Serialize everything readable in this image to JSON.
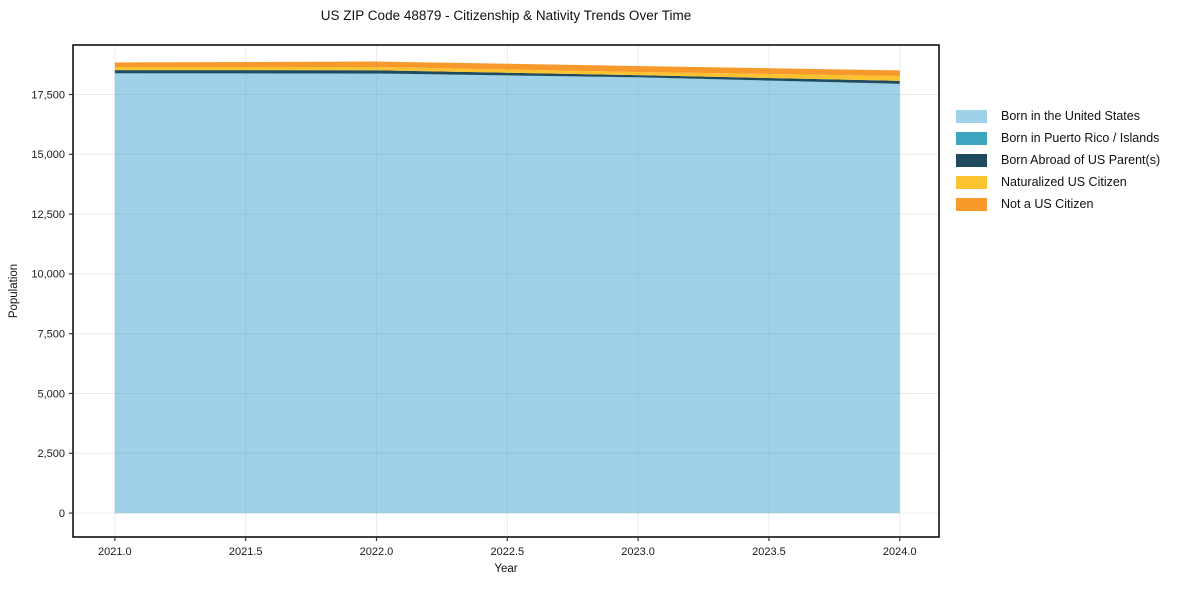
{
  "chart_data": {
    "type": "area",
    "stacked": true,
    "title": "US ZIP Code 48879 - Citizenship & Nativity Trends Over Time",
    "xlabel": "Year",
    "ylabel": "Population",
    "x": [
      2021,
      2022,
      2023,
      2024
    ],
    "series": [
      {
        "name": "Born in the United States",
        "color": "#9fd2e8",
        "values": [
          18380,
          18370,
          18210,
          17940
        ]
      },
      {
        "name": "Born in Puerto Rico / Islands",
        "color": "#3fa4c0",
        "values": [
          10,
          10,
          10,
          10
        ]
      },
      {
        "name": "Born Abroad of US Parent(s)",
        "color": "#204a5e",
        "values": [
          130,
          135,
          90,
          120
        ]
      },
      {
        "name": "Naturalized US Citizen",
        "color": "#fcc330",
        "values": [
          130,
          135,
          130,
          205
        ]
      },
      {
        "name": "Not a US Citizen",
        "color": "#f8992c",
        "values": [
          190,
          230,
          250,
          235
        ]
      }
    ],
    "xlim": [
      2020.84,
      2024.15
    ],
    "ylim": [
      -1000,
      19570
    ],
    "xticks": [
      2021.0,
      2021.5,
      2022.0,
      2022.5,
      2023.0,
      2023.5,
      2024.0
    ],
    "xtick_labels": [
      "2021.0",
      "2021.5",
      "2022.0",
      "2022.5",
      "2023.0",
      "2023.5",
      "2024.0"
    ],
    "yticks": [
      0,
      2500,
      5000,
      7500,
      10000,
      12500,
      15000,
      17500
    ],
    "ytick_labels": [
      "0",
      "2,500",
      "5,000",
      "7,500",
      "10,000",
      "12,500",
      "15,000",
      "17,500"
    ],
    "grid": true,
    "legend_position": "right"
  }
}
